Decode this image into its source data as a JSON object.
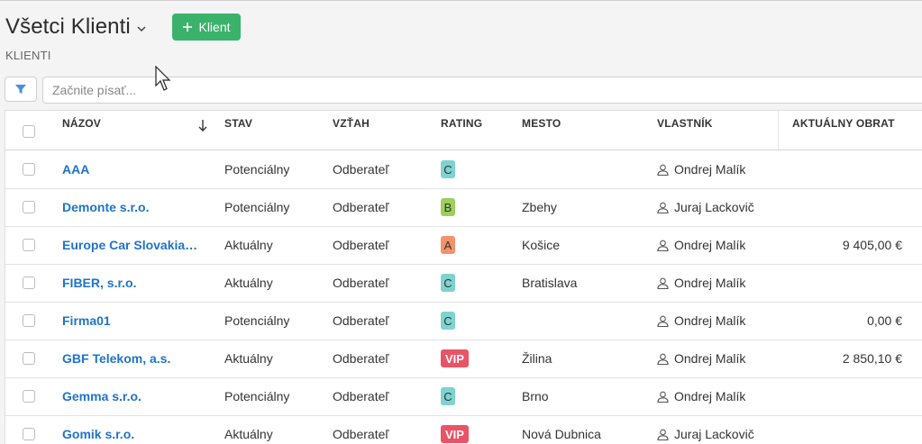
{
  "header": {
    "title": "Všetci Klienti",
    "add_button_label": "Klient",
    "subtitle": "KLIENTI"
  },
  "search": {
    "placeholder": "Začnite písať..."
  },
  "table": {
    "columns": {
      "name": "NÁZOV",
      "status": "STAV",
      "relation": "VZŤAH",
      "rating": "RATING",
      "city": "MESTO",
      "owner": "VLASTNÍK",
      "turnover": "AKTUÁLNY OBRAT"
    },
    "rows": [
      {
        "name": "AAA",
        "status": "Potenciálny",
        "relation": "Odberateľ",
        "rating": "C",
        "rating_color": "#7dd3cf",
        "city": "",
        "owner": "Ondrej Malík",
        "turnover": ""
      },
      {
        "name": "Demonte s.r.o.",
        "status": "Potenciálny",
        "relation": "Odberateľ",
        "rating": "B",
        "rating_color": "#9ccf5e",
        "city": "Zbehy",
        "owner": "Juraj Lackovič",
        "turnover": ""
      },
      {
        "name": "Europe Car Slovakia s.r.o.",
        "status": "Aktuálny",
        "relation": "Odberateľ",
        "rating": "A",
        "rating_color": "#f4936b",
        "city": "Košice",
        "owner": "Ondrej Malík",
        "turnover": "9 405,00 €"
      },
      {
        "name": "FIBER, s.r.o.",
        "status": "Aktuálny",
        "relation": "Odberateľ",
        "rating": "C",
        "rating_color": "#7dd3cf",
        "city": "Bratislava",
        "owner": "Ondrej Malík",
        "turnover": ""
      },
      {
        "name": "Firma01",
        "status": "Potenciálny",
        "relation": "Odberateľ",
        "rating": "C",
        "rating_color": "#7dd3cf",
        "city": "",
        "owner": "Ondrej Malík",
        "turnover": "0,00 €"
      },
      {
        "name": "GBF Telekom, a.s.",
        "status": "Aktuálny",
        "relation": "Odberateľ",
        "rating": "VIP",
        "rating_color": "#e85466",
        "city": "Žilina",
        "owner": "Ondrej Malík",
        "turnover": "2 850,10 €"
      },
      {
        "name": "Gemma s.r.o.",
        "status": "Potenciálny",
        "relation": "Odberateľ",
        "rating": "C",
        "rating_color": "#7dd3cf",
        "city": "Brno",
        "owner": "Ondrej Malík",
        "turnover": ""
      },
      {
        "name": "Gomik s.r.o.",
        "status": "Aktuálny",
        "relation": "Odberateľ",
        "rating": "VIP",
        "rating_color": "#e85466",
        "city": "Nová Dubnica",
        "owner": "Juraj Lackovič",
        "turnover": ""
      }
    ]
  },
  "colors": {
    "accent": "#3bb26b",
    "link": "#1f73c8",
    "filter_icon": "#4a90d9"
  },
  "icons": {
    "filter": "filter-icon",
    "user": "user-icon",
    "sort": "arrow-down-icon",
    "chevron": "chevron-down-icon",
    "plus": "plus-icon"
  }
}
